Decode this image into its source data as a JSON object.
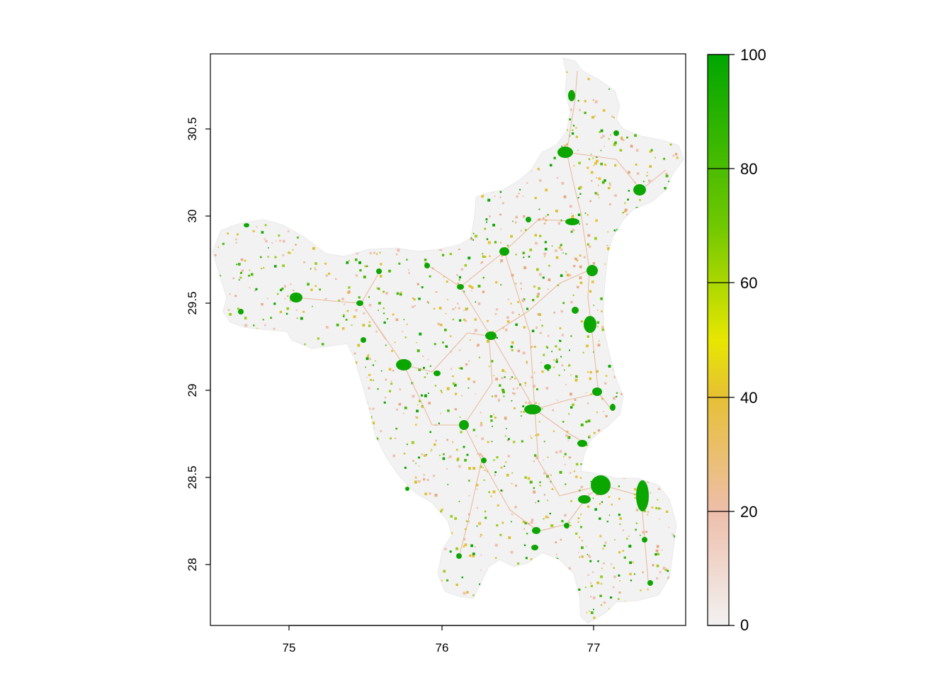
{
  "map": {
    "region": "Haryana, India",
    "value_range": [
      0,
      100
    ],
    "x_axis": {
      "ticks": [
        75,
        76,
        77
      ],
      "tick_labels": [
        "75",
        "76",
        "77"
      ],
      "range": [
        74.45,
        77.6
      ]
    },
    "y_axis": {
      "ticks": [
        28,
        28.5,
        29,
        29.5,
        30,
        30.5
      ],
      "tick_labels": [
        "28",
        "28.5",
        "29",
        "29.5",
        "30",
        "30.5"
      ],
      "range": [
        27.65,
        30.93
      ]
    },
    "legend": {
      "ticks": [
        0,
        20,
        40,
        60,
        80,
        100
      ],
      "tick_labels": [
        "0",
        "20",
        "40",
        "60",
        "80",
        "100"
      ],
      "colors": [
        "#F2F2F2",
        "#EEBEAA",
        "#E6C035",
        "#E7E700",
        "#70C800",
        "#00A600"
      ]
    },
    "colors": {
      "background": "#F2F2F2",
      "low": "#EEBEAA",
      "mid": "#E6C035",
      "high": "#00A600"
    }
  }
}
